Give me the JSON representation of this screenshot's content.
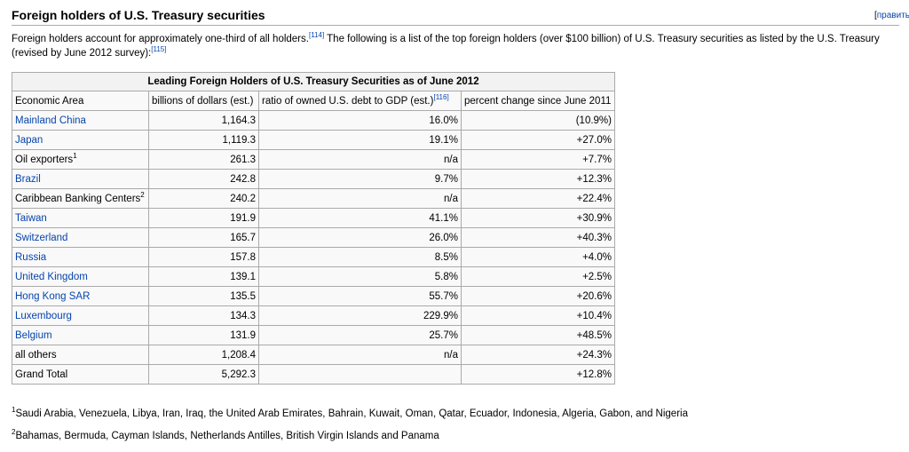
{
  "section": {
    "title": "Foreign holders of U.S. Treasury securities",
    "edit_label": "[правит",
    "edit_link": "править"
  },
  "intro": {
    "part1": "Foreign holders account for approximately one-third of all holders.",
    "ref1": "[114]",
    "part2": " The following is a list of the top foreign holders (over $100 billion) of U.S. Treasury securities as listed by the U.S. Treasury (revised by June 2012 survey):",
    "ref2": "[115]"
  },
  "table": {
    "caption": "Leading Foreign Holders of U.S. Treasury Securities as of June 2012",
    "headers": {
      "area": "Economic Area",
      "billions": "billions of dollars (est.)",
      "ratio": "ratio of owned U.S. debt to GDP (est.)",
      "ratio_ref": "[116]",
      "change": "percent change since June 2011"
    },
    "rows": [
      {
        "area": "Mainland China",
        "link": true,
        "sup": "",
        "billions": "1,164.3",
        "ratio": "16.0%",
        "change": "(10.9%)"
      },
      {
        "area": "Japan",
        "link": true,
        "sup": "",
        "billions": "1,119.3",
        "ratio": "19.1%",
        "change": "+27.0%"
      },
      {
        "area": "Oil exporters",
        "link": false,
        "sup": "1",
        "billions": "261.3",
        "ratio": "n/a",
        "change": "+7.7%"
      },
      {
        "area": "Brazil",
        "link": true,
        "sup": "",
        "billions": "242.8",
        "ratio": "9.7%",
        "change": "+12.3%"
      },
      {
        "area": "Caribbean Banking Centers",
        "link": false,
        "sup": "2",
        "billions": "240.2",
        "ratio": "n/a",
        "change": "+22.4%"
      },
      {
        "area": "Taiwan",
        "link": true,
        "sup": "",
        "billions": "191.9",
        "ratio": "41.1%",
        "change": "+30.9%"
      },
      {
        "area": "Switzerland",
        "link": true,
        "sup": "",
        "billions": "165.7",
        "ratio": "26.0%",
        "change": "+40.3%"
      },
      {
        "area": "Russia",
        "link": true,
        "sup": "",
        "billions": "157.8",
        "ratio": "8.5%",
        "change": "+4.0%"
      },
      {
        "area": "United Kingdom",
        "link": true,
        "sup": "",
        "billions": "139.1",
        "ratio": "5.8%",
        "change": "+2.5%"
      },
      {
        "area": "Hong Kong SAR",
        "link": true,
        "sup": "",
        "billions": "135.5",
        "ratio": "55.7%",
        "change": "+20.6%"
      },
      {
        "area": "Luxembourg",
        "link": true,
        "sup": "",
        "billions": "134.3",
        "ratio": "229.9%",
        "change": "+10.4%"
      },
      {
        "area": "Belgium",
        "link": true,
        "sup": "",
        "billions": "131.9",
        "ratio": "25.7%",
        "change": "+48.5%"
      },
      {
        "area": "all others",
        "link": false,
        "sup": "",
        "billions": "1,208.4",
        "ratio": "n/a",
        "change": "+24.3%"
      },
      {
        "area": "Grand Total",
        "link": false,
        "sup": "",
        "billions": "5,292.3",
        "ratio": "",
        "change": "+12.8%"
      }
    ]
  },
  "footnotes": [
    {
      "mark": "1",
      "text": "Saudi Arabia, Venezuela, Libya, Iran, Iraq, the United Arab Emirates, Bahrain, Kuwait, Oman, Qatar, Ecuador, Indonesia, Algeria, Gabon, and Nigeria"
    },
    {
      "mark": "2",
      "text": "Bahamas, Bermuda, Cayman Islands, Netherlands Antilles, British Virgin Islands and Panama"
    }
  ],
  "colors": {
    "link": "#0645ad",
    "border": "#aaaaaa",
    "table_bg": "#f9f9f9",
    "caption_bg": "#f2f2f2"
  }
}
